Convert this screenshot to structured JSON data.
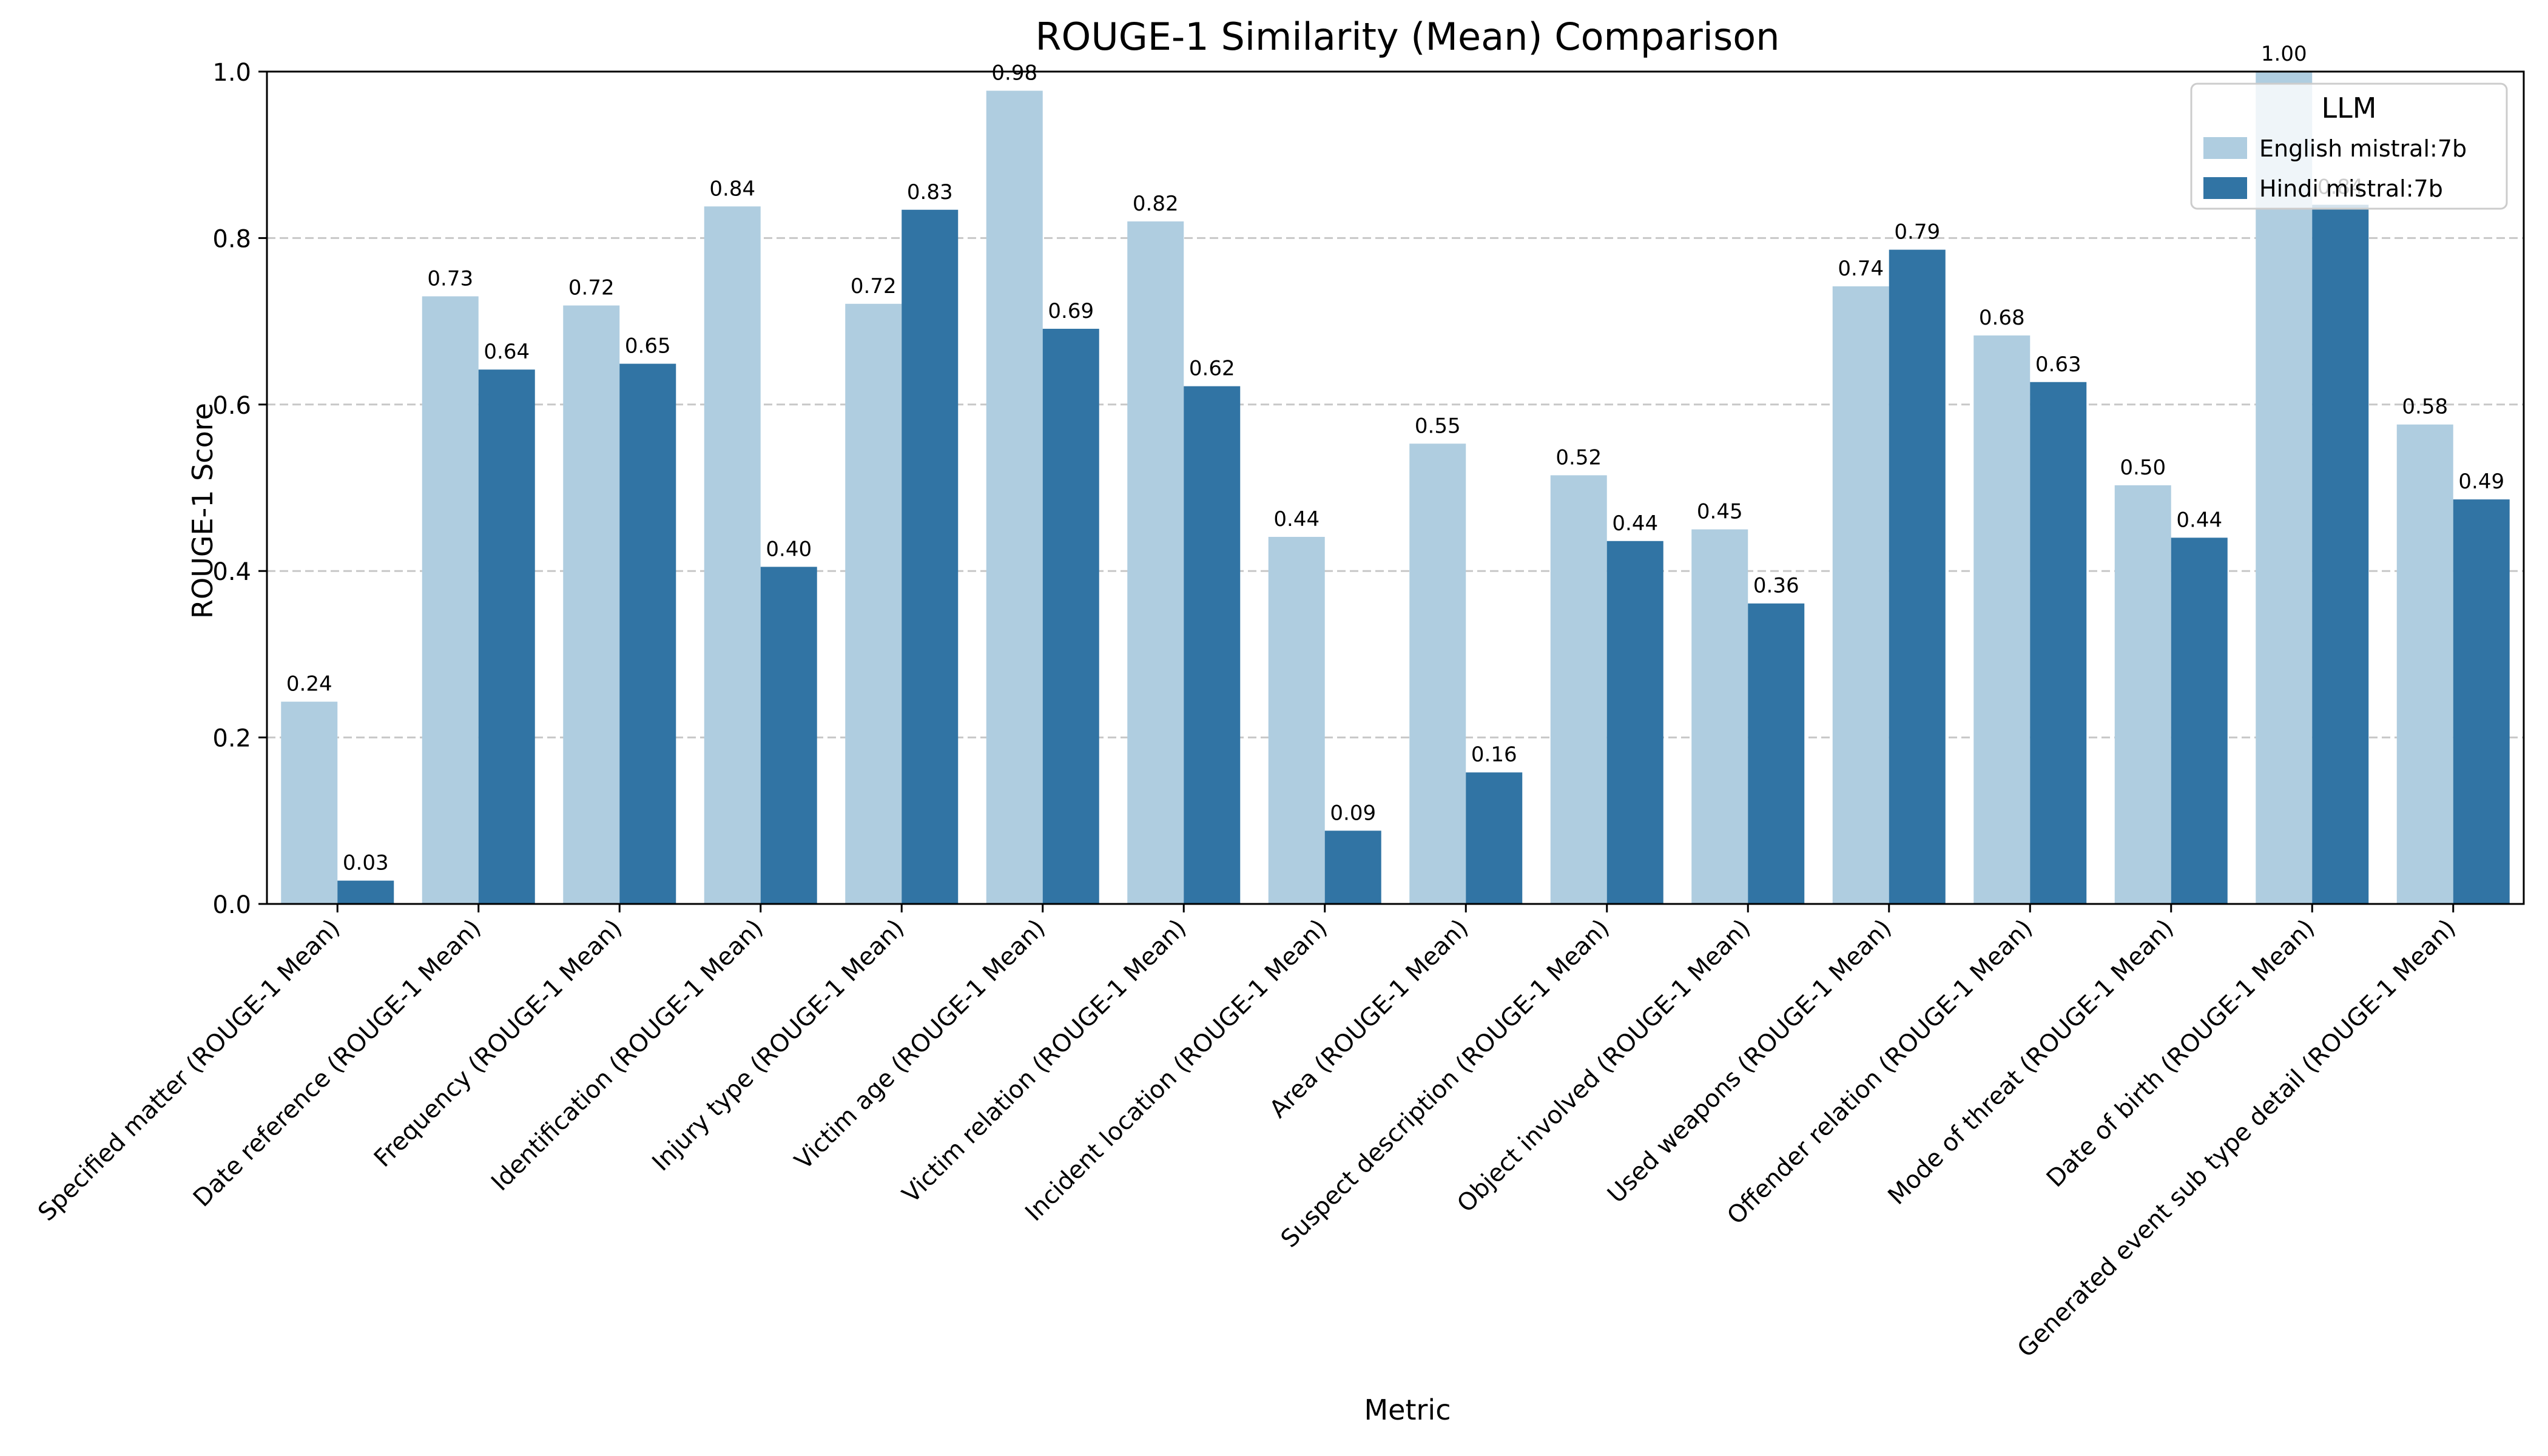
{
  "chart_data": {
    "type": "bar",
    "title": "ROUGE-1 Similarity (Mean) Comparison",
    "xlabel": "Metric",
    "ylabel": "ROUGE-1 Score",
    "ylim": [
      0,
      1.0
    ],
    "yticks": [
      0.0,
      0.2,
      0.4,
      0.6,
      0.8,
      1.0
    ],
    "ytick_labels": [
      "0.0",
      "0.2",
      "0.4",
      "0.6",
      "0.8",
      "1.0"
    ],
    "grid": "y-dashed",
    "legend": {
      "title": "LLM",
      "position": "top-right"
    },
    "categories": [
      "Specified matter (ROUGE-1 Mean)",
      "Date reference (ROUGE-1 Mean)",
      "Frequency (ROUGE-1 Mean)",
      "Identification (ROUGE-1 Mean)",
      "Injury type (ROUGE-1 Mean)",
      "Victim age (ROUGE-1 Mean)",
      "Victim relation (ROUGE-1 Mean)",
      "Incident location (ROUGE-1 Mean)",
      "Area (ROUGE-1 Mean)",
      "Suspect description (ROUGE-1 Mean)",
      "Object involved (ROUGE-1 Mean)",
      "Used weapons (ROUGE-1 Mean)",
      "Offender relation (ROUGE-1 Mean)",
      "Mode of threat (ROUGE-1 Mean)",
      "Date of birth (ROUGE-1 Mean)",
      "Generated event sub type detail (ROUGE-1 Mean)"
    ],
    "series": [
      {
        "name": "English mistral:7b",
        "color": "#afcde0",
        "values": [
          0.243,
          0.73,
          0.719,
          0.838,
          0.721,
          0.977,
          0.82,
          0.441,
          0.553,
          0.515,
          0.45,
          0.742,
          0.683,
          0.503,
          1.0,
          0.576
        ],
        "labels": [
          "0.24",
          "0.73",
          "0.72",
          "0.84",
          "0.72",
          "0.98",
          "0.82",
          "0.44",
          "0.55",
          "0.52",
          "0.45",
          "0.74",
          "0.68",
          "0.50",
          "1.00",
          "0.58"
        ]
      },
      {
        "name": "Hindi mistral:7b",
        "color": "#3174a4",
        "values": [
          0.028,
          0.642,
          0.649,
          0.405,
          0.834,
          0.691,
          0.622,
          0.088,
          0.158,
          0.436,
          0.361,
          0.786,
          0.627,
          0.44,
          0.84,
          0.486
        ],
        "labels": [
          "0.03",
          "0.64",
          "0.65",
          "0.40",
          "0.83",
          "0.69",
          "0.62",
          "0.09",
          "0.16",
          "0.44",
          "0.36",
          "0.79",
          "0.63",
          "0.44",
          "0.84",
          "0.49"
        ]
      }
    ]
  }
}
